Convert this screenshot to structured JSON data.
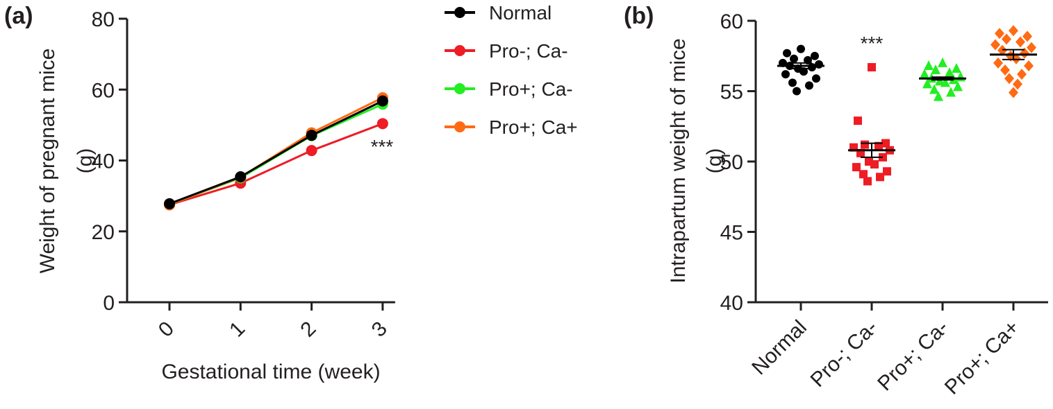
{
  "colors": {
    "Normal": "#000000",
    "Pro-; Ca-": "#ee1c24",
    "Pro+; Ca-": "#22ee22",
    "Pro+; Ca+": "#ff6a13",
    "axis": "#231f20"
  },
  "chart_data": [
    {
      "type": "line",
      "panel_label": "(a)",
      "ylabel_line1": "Weight of pregnant mice",
      "ylabel_line2": "(g)",
      "xlabel": "Gestational time (week)",
      "x": [
        0,
        1,
        2,
        3
      ],
      "x_tick_labels": [
        "0",
        "1",
        "2",
        "3"
      ],
      "ylim": [
        0,
        80
      ],
      "y_ticks": [
        0,
        20,
        40,
        60,
        80
      ],
      "legend_position": "right",
      "annotation": "***",
      "series": [
        {
          "name": "Normal",
          "values": [
            27.8,
            35.4,
            47.1,
            56.8
          ]
        },
        {
          "name": "Pro-; Ca-",
          "values": [
            27.5,
            33.6,
            42.8,
            50.4
          ]
        },
        {
          "name": "Pro+; Ca-",
          "values": [
            27.6,
            35.1,
            47.0,
            55.9
          ]
        },
        {
          "name": "Pro+; Ca+",
          "values": [
            27.6,
            35.3,
            47.8,
            57.7
          ]
        }
      ]
    },
    {
      "type": "scatter",
      "panel_label": "(b)",
      "ylabel_line1": "Intrapartum weight of mice",
      "ylabel_line2": "(g)",
      "ylim": [
        40,
        60
      ],
      "y_ticks": [
        40,
        45,
        50,
        55,
        60
      ],
      "categories": [
        "Normal",
        "Pro-; Ca-",
        "Pro+; Ca-",
        "Pro+; Ca+"
      ],
      "annotation": "***",
      "annotation_category": "Pro-; Ca-",
      "groups": [
        {
          "name": "Normal",
          "marker": "circle",
          "mean": 56.8,
          "sem": 0.2,
          "values": [
            58.0,
            57.7,
            57.5,
            57.3,
            57.2,
            57.0,
            56.9,
            56.8,
            56.7,
            56.6,
            56.4,
            56.2,
            55.9,
            55.6,
            55.4,
            55.0
          ]
        },
        {
          "name": "Pro-; Ca-",
          "marker": "square",
          "mean": 50.8,
          "sem": 0.5,
          "values": [
            56.7,
            52.9,
            51.3,
            51.2,
            51.1,
            51.0,
            50.8,
            50.6,
            50.3,
            50.0,
            49.8,
            49.6,
            49.3,
            49.1,
            48.9,
            48.6
          ]
        },
        {
          "name": "Pro+; Ca-",
          "marker": "triangle",
          "mean": 55.9,
          "sem": 0.1,
          "values": [
            57.0,
            56.8,
            56.6,
            56.5,
            56.3,
            56.2,
            56.0,
            55.9,
            55.8,
            55.7,
            55.6,
            55.5,
            55.3,
            55.1,
            54.9,
            54.6
          ]
        },
        {
          "name": "Pro+; Ca+",
          "marker": "diamond",
          "mean": 57.6,
          "sem": 0.35,
          "values": [
            59.3,
            59.1,
            58.9,
            58.7,
            58.5,
            58.3,
            58.1,
            57.9,
            57.7,
            57.5,
            57.3,
            57.0,
            56.8,
            56.5,
            56.2,
            55.9,
            55.5,
            54.9
          ]
        }
      ]
    }
  ]
}
